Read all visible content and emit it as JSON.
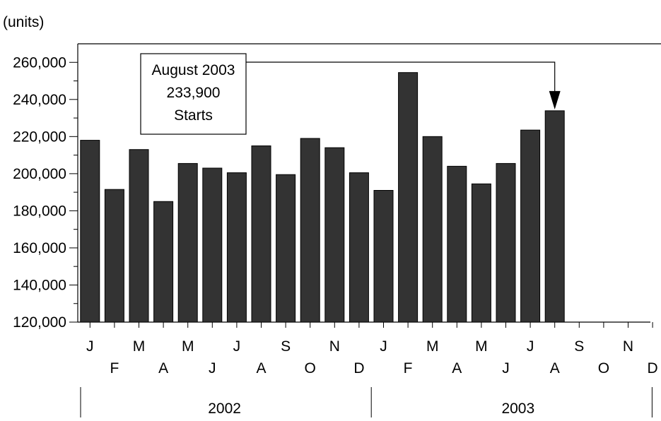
{
  "chart_data": {
    "type": "bar",
    "unit_label": "(units)",
    "categories": [
      "J",
      "F",
      "M",
      "A",
      "M",
      "J",
      "J",
      "A",
      "S",
      "O",
      "N",
      "D",
      "J",
      "F",
      "M",
      "A",
      "M",
      "J",
      "J",
      "A",
      "S",
      "O",
      "N",
      "D"
    ],
    "values": [
      218000,
      191500,
      213000,
      185000,
      205500,
      203000,
      200500,
      215000,
      199500,
      219000,
      214000,
      200500,
      191000,
      254500,
      220000,
      204000,
      194500,
      205500,
      223500,
      233900,
      null,
      null,
      null,
      null
    ],
    "years": [
      {
        "label": "2002",
        "start_index": 0,
        "end_index": 11
      },
      {
        "label": "2003",
        "start_index": 12,
        "end_index": 23
      }
    ],
    "ylim": [
      120000,
      270000
    ],
    "y_ticks": [
      120000,
      140000,
      160000,
      180000,
      200000,
      220000,
      240000,
      260000
    ],
    "y_tick_labels": [
      "120,000",
      "140,000",
      "160,000",
      "180,000",
      "200,000",
      "220,000",
      "240,000",
      "260,000"
    ],
    "annotation": {
      "lines": [
        "August 2003",
        "233,900",
        "Starts"
      ],
      "target_index": 19
    },
    "colors": {
      "bar_fill": "#333333",
      "bar_stroke": "#000000",
      "axis": "#000000"
    },
    "grid": false,
    "legend": "none"
  }
}
